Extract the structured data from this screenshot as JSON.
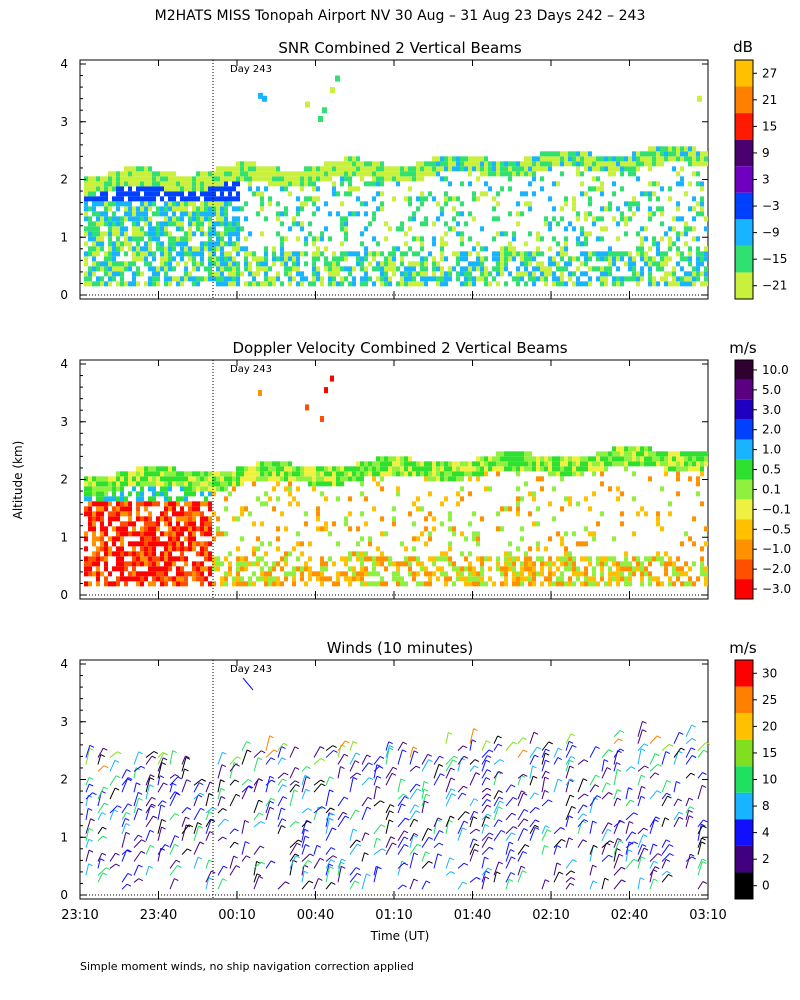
{
  "figure": {
    "title": "M2HATS MISS Tonopah Airport NV  30 Aug – 31 Aug 23 Days 242 – 243",
    "ylabel": "Altitude (km)",
    "xlabel": "Time (UT)",
    "footnote": "Simple moment winds, no ship navigation correction applied"
  },
  "chart_data": [
    {
      "type": "heatmap",
      "title": "SNR Combined 2 Vertical Beams",
      "units": "dB",
      "ylim": [
        0,
        4
      ],
      "yticks": [
        "0",
        "1",
        "2",
        "3",
        "4"
      ],
      "x_range_minutes_from_2310": [
        0,
        240
      ],
      "day_marker": "Day 243",
      "day_marker_time": "00:00",
      "colorbar": {
        "ticks": [
          "27",
          "21",
          "15",
          "9",
          "3",
          "−3",
          "−9",
          "−15",
          "−21"
        ],
        "colors": [
          "#ffc000",
          "#ff8000",
          "#ff1a00",
          "#4b0070",
          "#7000c0",
          "#0040ff",
          "#18b4ff",
          "#30e070",
          "#c8f03c"
        ]
      }
    },
    {
      "type": "heatmap",
      "title": "Doppler Velocity Combined 2 Vertical Beams",
      "units": "m/s",
      "ylim": [
        0,
        4
      ],
      "yticks": [
        "0",
        "1",
        "2",
        "3",
        "4"
      ],
      "x_range_minutes_from_2310": [
        0,
        240
      ],
      "day_marker": "Day 243",
      "day_marker_time": "00:00",
      "colorbar": {
        "ticks": [
          "10.0",
          "5.0",
          "3.0",
          "2.0",
          "1.0",
          "0.5",
          "0.1",
          "−0.1",
          "−0.5",
          "−1.0",
          "−2.0",
          "−3.0"
        ],
        "colors": [
          "#300030",
          "#5a0080",
          "#2000c0",
          "#0040ff",
          "#18b4ff",
          "#30e030",
          "#90f040",
          "#f0f040",
          "#ffc000",
          "#ff9000",
          "#ff5000",
          "#ff0000"
        ]
      }
    },
    {
      "type": "wind_barbs",
      "title": "Winds (10 minutes)",
      "units": "m/s",
      "ylim": [
        0,
        4
      ],
      "yticks": [
        "0",
        "1",
        "2",
        "3",
        "4"
      ],
      "x_range_minutes_from_2310": [
        0,
        240
      ],
      "xticks": [
        "23:10",
        "23:40",
        "00:10",
        "00:40",
        "01:10",
        "01:40",
        "02:10",
        "02:40",
        "03:10"
      ],
      "day_marker": "Day 243",
      "day_marker_time": "00:00",
      "colorbar": {
        "ticks": [
          "30",
          "25",
          "20",
          "15",
          "10",
          "8",
          "4",
          "2",
          "0"
        ],
        "colors": [
          "#ff0000",
          "#ff8000",
          "#ffc000",
          "#80e020",
          "#20e060",
          "#18b4ff",
          "#1010ff",
          "#400080",
          "#000000"
        ]
      }
    }
  ]
}
